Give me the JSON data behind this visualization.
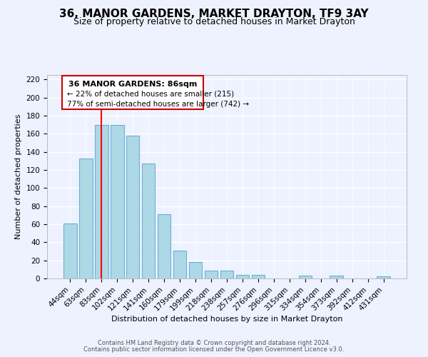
{
  "title": "36, MANOR GARDENS, MARKET DRAYTON, TF9 3AY",
  "subtitle": "Size of property relative to detached houses in Market Drayton",
  "xlabel": "Distribution of detached houses by size in Market Drayton",
  "ylabel": "Number of detached properties",
  "footer_line1": "Contains HM Land Registry data © Crown copyright and database right 2024.",
  "footer_line2": "Contains public sector information licensed under the Open Government Licence v3.0.",
  "bar_labels": [
    "44sqm",
    "63sqm",
    "83sqm",
    "102sqm",
    "121sqm",
    "141sqm",
    "160sqm",
    "179sqm",
    "199sqm",
    "218sqm",
    "238sqm",
    "257sqm",
    "276sqm",
    "296sqm",
    "315sqm",
    "334sqm",
    "354sqm",
    "373sqm",
    "392sqm",
    "412sqm",
    "431sqm"
  ],
  "bar_values": [
    61,
    133,
    170,
    170,
    158,
    127,
    71,
    31,
    18,
    9,
    9,
    4,
    4,
    0,
    0,
    3,
    0,
    3,
    0,
    0,
    2
  ],
  "bar_color": "#add8e6",
  "bar_edge_color": "#6ab0d4",
  "highlight_bar_index": 2,
  "highlight_line_color": "#ff0000",
  "ylim": [
    0,
    225
  ],
  "yticks": [
    0,
    20,
    40,
    60,
    80,
    100,
    120,
    140,
    160,
    180,
    200,
    220
  ],
  "annotation_title": "36 MANOR GARDENS: 86sqm",
  "annotation_line1": "← 22% of detached houses are smaller (215)",
  "annotation_line2": "77% of semi-detached houses are larger (742) →",
  "bg_color": "#eef2ff",
  "grid_color": "#ffffff",
  "title_fontsize": 11,
  "subtitle_fontsize": 9,
  "axis_fontsize": 8,
  "tick_fontsize": 7.5
}
